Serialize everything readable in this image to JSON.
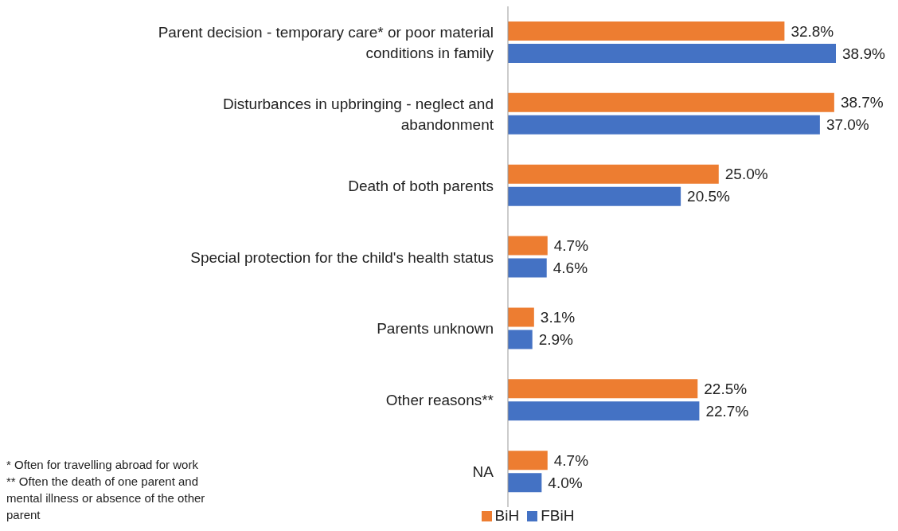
{
  "chart_data": {
    "type": "bar",
    "orientation": "horizontal",
    "categories": [
      "Parent decision - temporary care* or poor material conditions in family",
      "Disturbances in upbringing - neglect and abandonment",
      "Death of both parents",
      "Special protection for the child's health status",
      "Parents unknown",
      "Other reasons**",
      "NA"
    ],
    "series": [
      {
        "name": "BiH",
        "color": "#ed7d31",
        "values": [
          32.8,
          38.7,
          25.0,
          4.7,
          3.1,
          22.5,
          4.7
        ],
        "value_labels": [
          "32.8%",
          "38.7%",
          "25.0%",
          "4.7%",
          "3.1%",
          "22.5%",
          "4.7%"
        ]
      },
      {
        "name": "FBiH",
        "color": "#4472c4",
        "values": [
          38.9,
          37.0,
          20.5,
          4.6,
          2.9,
          22.7,
          4.0
        ],
        "value_labels": [
          "38.9%",
          "37.0%",
          "20.5%",
          "4.6%",
          "2.9%",
          "22.7%",
          "4.0%"
        ]
      }
    ],
    "legend": "bottom",
    "annotations": [
      "* Often for travelling abroad for work",
      "** Often the death of one parent and mental illness or absence of the other parent"
    ]
  }
}
